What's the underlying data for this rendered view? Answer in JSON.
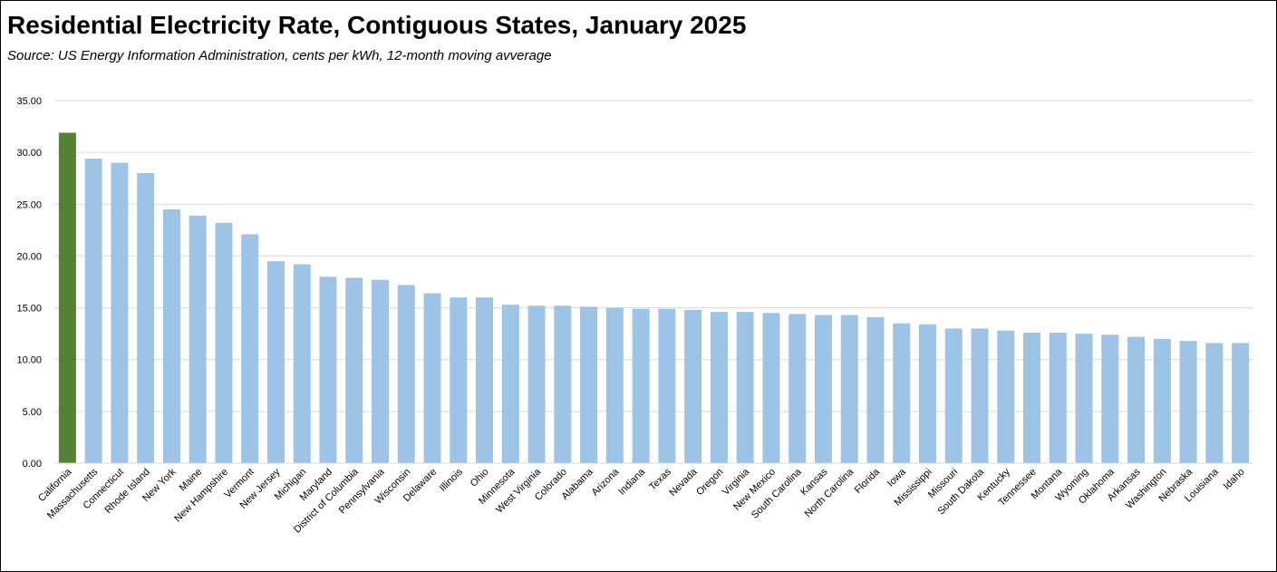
{
  "header": {
    "title": "Residential Electricity Rate, Contiguous States, January 2025",
    "subtitle": "Source:  US Energy Information Administration, cents per kWh, 12-month moving avverage"
  },
  "colors": {
    "highlight": "#548235",
    "bar": "#9DC3E6",
    "grid": "#D9D9D9"
  },
  "chart_data": {
    "type": "bar",
    "title": "Residential Electricity Rate, Contiguous States, January 2025",
    "subtitle": "Source:  US Energy Information Administration, cents per kWh, 12-month moving avverage",
    "xlabel": "",
    "ylabel": "",
    "ylim": [
      0,
      35
    ],
    "yticks": [
      "0.00",
      "5.00",
      "10.00",
      "15.00",
      "20.00",
      "25.00",
      "30.00",
      "35.00"
    ],
    "grid": true,
    "legend": "none",
    "highlight_category": "California",
    "categories": [
      "California",
      "Massachusetts",
      "Connecticut",
      "Rhode Island",
      "New York",
      "Maine",
      "New Hampshire",
      "Vermont",
      "New Jersey",
      "Michigan",
      "Maryland",
      "District of Columbia",
      "Pennsylvania",
      "Wisconsin",
      "Delaware",
      "Illinois",
      "Ohio",
      "Minnesota",
      "West Virginia",
      "Colorado",
      "Alabama",
      "Arizona",
      "Indiana",
      "Texas",
      "Nevada",
      "Oregon",
      "Virginia",
      "New Mexico",
      "South Carolina",
      "Kansas",
      "North Carolina",
      "Florida",
      "Iowa",
      "Mississippi",
      "Missouri",
      "South Dakota",
      "Kentucky",
      "Tennessee",
      "Montana",
      "Wyoming",
      "Oklahoma",
      "Arkansas",
      "Washington",
      "Nebraska",
      "Louisiana",
      "Idaho"
    ],
    "values": [
      31.9,
      29.4,
      29.0,
      28.0,
      24.5,
      23.9,
      23.2,
      22.1,
      19.5,
      19.2,
      18.0,
      17.9,
      17.7,
      17.2,
      16.4,
      16.0,
      16.0,
      15.3,
      15.2,
      15.2,
      15.1,
      15.0,
      14.9,
      14.9,
      14.8,
      14.6,
      14.6,
      14.5,
      14.4,
      14.3,
      14.3,
      14.1,
      13.5,
      13.4,
      13.0,
      13.0,
      12.8,
      12.6,
      12.6,
      12.5,
      12.4,
      12.2,
      12.0,
      11.8,
      11.6,
      11.6
    ]
  }
}
